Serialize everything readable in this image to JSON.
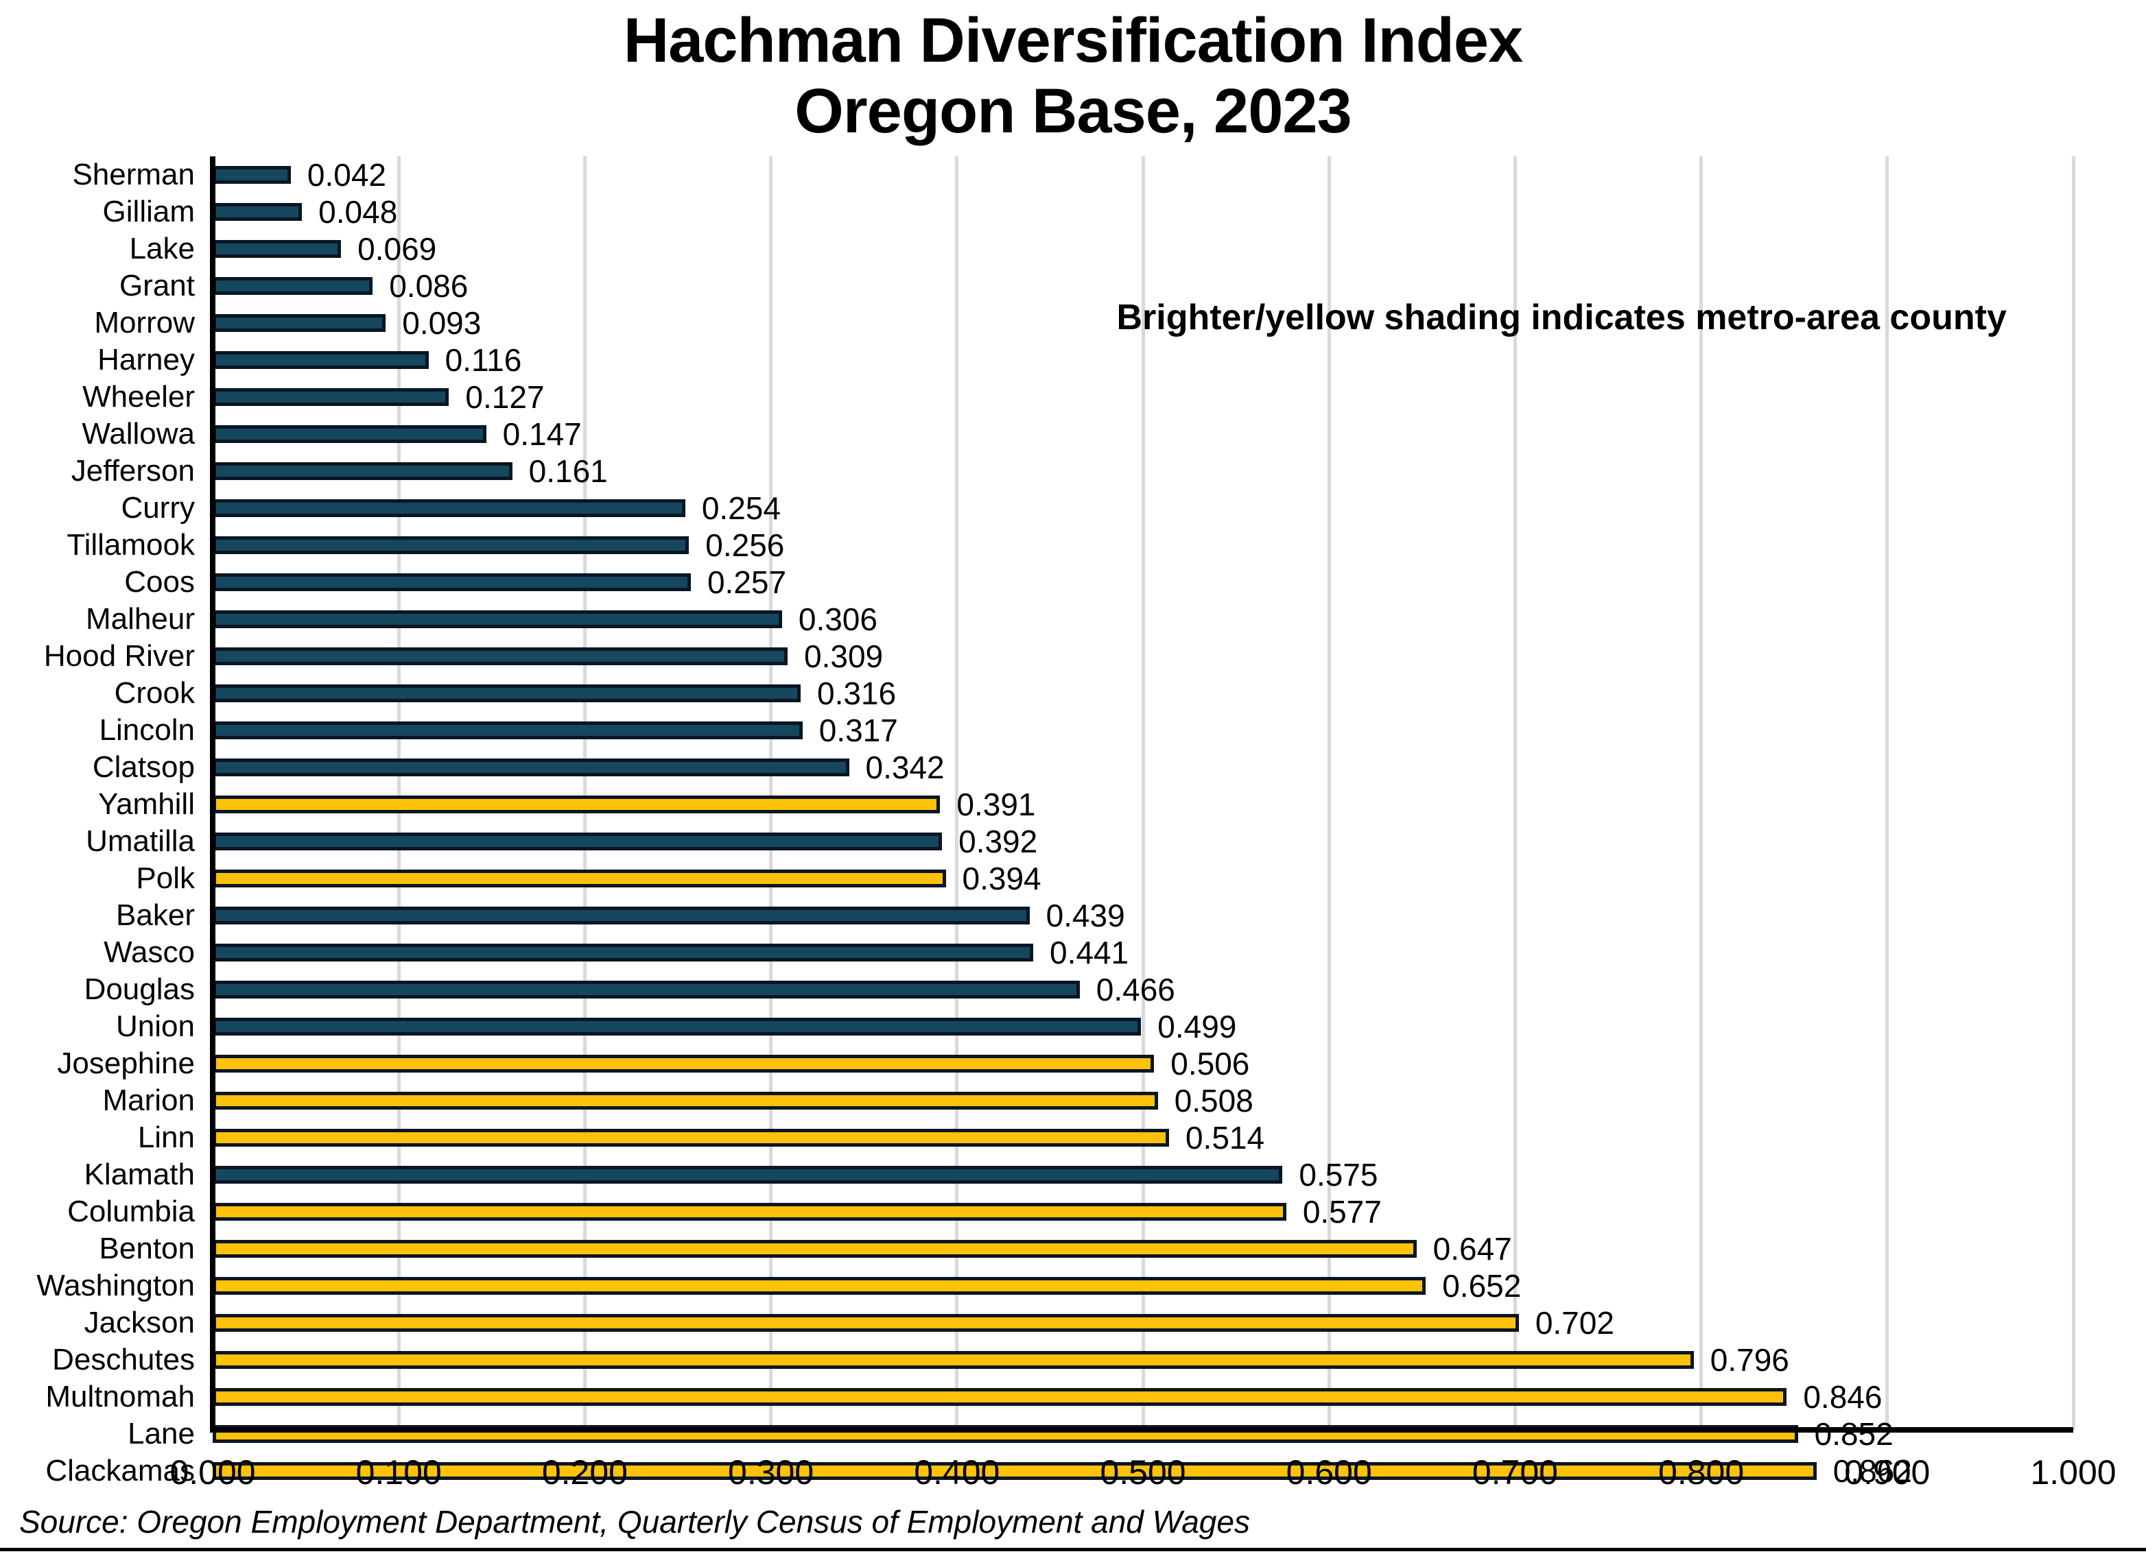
{
  "title": {
    "line1": "Hachman Diversification Index",
    "line2": "Oregon Base, 2023"
  },
  "annotation": "Brighter/yellow shading indicates metro-area county",
  "source": "Source: Oregon Employment Department, Quarterly Census of Employment and Wages",
  "colors": {
    "metro_fill": "#FFC20A",
    "non_metro_fill": "#15475E",
    "bar_border": "#0A1624",
    "gridline": "#D9D9D9",
    "axis": "#000000",
    "text": "#000000"
  },
  "chart_data": {
    "type": "bar",
    "orientation": "horizontal",
    "title": "Hachman Diversification Index, Oregon Base, 2023",
    "xlabel": "",
    "ylabel": "",
    "xlim": [
      0,
      1
    ],
    "grid": "vertical",
    "x_ticks": [
      "0.000",
      "0.100",
      "0.200",
      "0.300",
      "0.400",
      "0.500",
      "0.600",
      "0.700",
      "0.800",
      "0.900",
      "1.000"
    ],
    "legend_note": "Brighter/yellow shading indicates metro-area county",
    "categories": [
      "Sherman",
      "Gilliam",
      "Lake",
      "Grant",
      "Morrow",
      "Harney",
      "Wheeler",
      "Wallowa",
      "Jefferson",
      "Curry",
      "Tillamook",
      "Coos",
      "Malheur",
      "Hood River",
      "Crook",
      "Lincoln",
      "Clatsop",
      "Yamhill",
      "Umatilla",
      "Polk",
      "Baker",
      "Wasco",
      "Douglas",
      "Union",
      "Josephine",
      "Marion",
      "Linn",
      "Klamath",
      "Columbia",
      "Benton",
      "Washington",
      "Jackson",
      "Deschutes",
      "Multnomah",
      "Lane",
      "Clackamas"
    ],
    "values": [
      0.042,
      0.048,
      0.069,
      0.086,
      0.093,
      0.116,
      0.127,
      0.147,
      0.161,
      0.254,
      0.256,
      0.257,
      0.306,
      0.309,
      0.316,
      0.317,
      0.342,
      0.391,
      0.392,
      0.394,
      0.439,
      0.441,
      0.466,
      0.499,
      0.506,
      0.508,
      0.514,
      0.575,
      0.577,
      0.647,
      0.652,
      0.702,
      0.796,
      0.846,
      0.852,
      0.862
    ],
    "value_labels": [
      "0.042",
      "0.048",
      "0.069",
      "0.086",
      "0.093",
      "0.116",
      "0.127",
      "0.147",
      "0.161",
      "0.254",
      "0.256",
      "0.257",
      "0.306",
      "0.309",
      "0.316",
      "0.317",
      "0.342",
      "0.391",
      "0.392",
      "0.394",
      "0.439",
      "0.441",
      "0.466",
      "0.499",
      "0.506",
      "0.508",
      "0.514",
      "0.575",
      "0.577",
      "0.647",
      "0.652",
      "0.702",
      "0.796",
      "0.846",
      "0.852",
      "0.862"
    ],
    "metro": [
      false,
      false,
      false,
      false,
      false,
      false,
      false,
      false,
      false,
      false,
      false,
      false,
      false,
      false,
      false,
      false,
      false,
      true,
      false,
      true,
      false,
      false,
      false,
      false,
      true,
      true,
      true,
      false,
      true,
      true,
      true,
      true,
      true,
      true,
      true,
      true
    ]
  }
}
